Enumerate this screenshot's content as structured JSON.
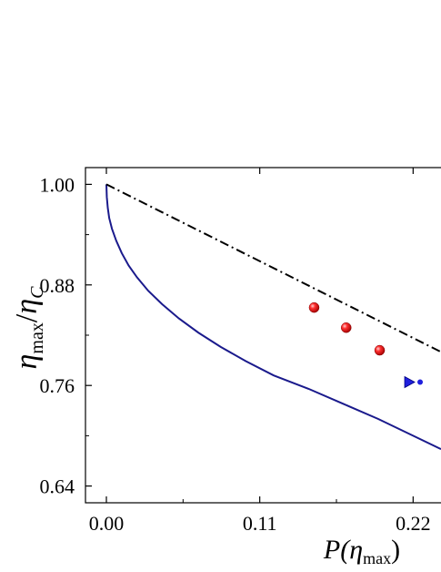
{
  "chart_data": {
    "type": "line",
    "x_axis": {
      "label_main": "P(",
      "label_var": "η",
      "label_sub": "max",
      "label_close": ")",
      "range": [
        -0.015,
        0.24
      ],
      "ticks": [
        0.0,
        0.11,
        0.22
      ],
      "tick_labels": [
        "0.00",
        "0.11",
        "0.22"
      ]
    },
    "y_axis": {
      "label_var": "η",
      "label_sub": "max",
      "label_slash": "/",
      "label_var2": "η",
      "label_sub2": "C",
      "range": [
        0.62,
        1.02
      ],
      "ticks": [
        0.64,
        0.76,
        0.88,
        1.0
      ],
      "tick_labels": [
        "0.64",
        "0.76",
        "0.88",
        "1.00"
      ]
    },
    "series": [
      {
        "style": "solid",
        "color": "#1a1a8c",
        "points": [
          [
            0.0,
            1.0
          ],
          [
            0.0003,
            0.985
          ],
          [
            0.001,
            0.972
          ],
          [
            0.002,
            0.96
          ],
          [
            0.004,
            0.947
          ],
          [
            0.007,
            0.933
          ],
          [
            0.011,
            0.918
          ],
          [
            0.016,
            0.903
          ],
          [
            0.022,
            0.889
          ],
          [
            0.03,
            0.873
          ],
          [
            0.04,
            0.857
          ],
          [
            0.052,
            0.84
          ],
          [
            0.066,
            0.823
          ],
          [
            0.082,
            0.806
          ],
          [
            0.1,
            0.789
          ],
          [
            0.12,
            0.772
          ],
          [
            0.145,
            0.756
          ],
          [
            0.17,
            0.738
          ],
          [
            0.195,
            0.72
          ],
          [
            0.22,
            0.7
          ],
          [
            0.24,
            0.684
          ]
        ]
      },
      {
        "style": "dash-dot",
        "color": "#000000",
        "points": [
          [
            0.0,
            1.0
          ],
          [
            0.24,
            0.8
          ]
        ]
      }
    ],
    "scatter": [
      {
        "marker": "sphere",
        "color": "#e01010",
        "points": [
          [
            0.149,
            0.853
          ],
          [
            0.172,
            0.829
          ],
          [
            0.196,
            0.802
          ]
        ]
      },
      {
        "marker": "triangle-right",
        "color": "#2020dd",
        "points": [
          [
            0.2172,
            0.764
          ]
        ]
      }
    ]
  }
}
